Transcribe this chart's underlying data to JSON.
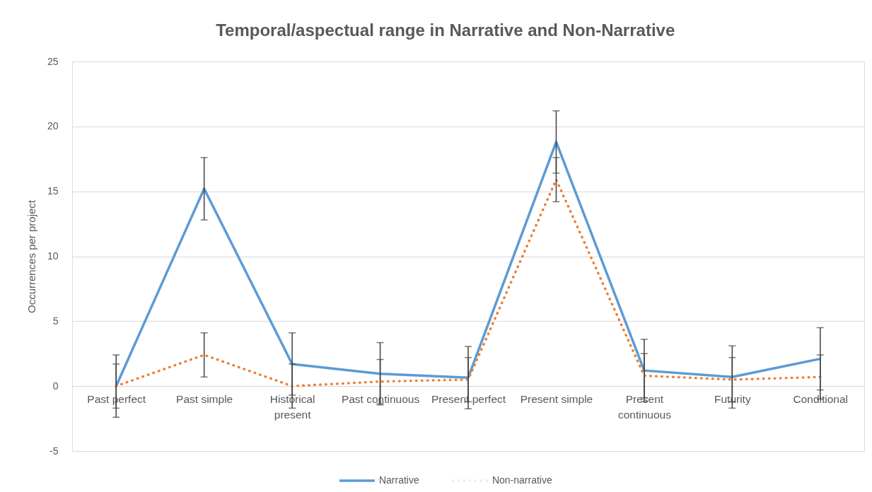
{
  "chart_data": {
    "type": "line",
    "title": "Temporal/aspectual range in Narrative and Non-Narrative",
    "ylabel": "Occurrences per project",
    "categories": [
      "Past perfect",
      "Past simple",
      "Historical present",
      "Past continuous",
      "Present perfect",
      "Present simple",
      "Present continuous",
      "Futurity",
      "Conditional"
    ],
    "series": [
      {
        "name": "Narrative",
        "color": "#5b9bd5",
        "line_style": "solid",
        "values": [
          0,
          15.2,
          1.7,
          0.95,
          0.65,
          18.8,
          1.2,
          0.7,
          2.1
        ],
        "errors": [
          2.4,
          2.4,
          2.4,
          2.4,
          2.4,
          2.4,
          2.4,
          2.4,
          2.4
        ]
      },
      {
        "name": "Non-narrative",
        "color": "#ed7d31",
        "line_style": "dotted",
        "values": [
          0,
          2.4,
          0,
          0.35,
          0.5,
          15.9,
          0.8,
          0.5,
          0.7
        ],
        "errors": [
          1.7,
          1.7,
          1.7,
          1.7,
          1.7,
          1.7,
          1.7,
          1.7,
          1.7
        ]
      }
    ],
    "ylim": [
      -5,
      25
    ],
    "yticks": [
      -5,
      0,
      5,
      10,
      15,
      20,
      25
    ],
    "grid": "y",
    "legend": "bottom",
    "marker": "none"
  }
}
